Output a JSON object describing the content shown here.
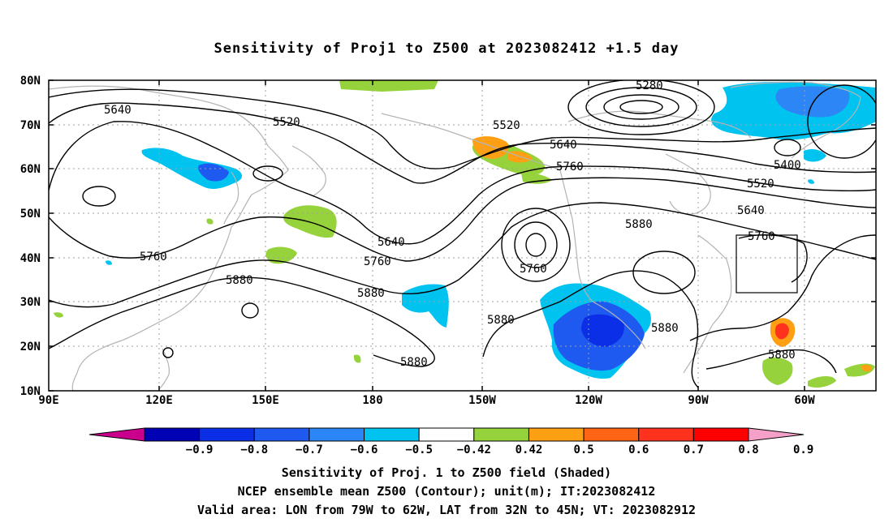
{
  "title": "Sensitivity of Proj1 to Z500 at 2023082412 +1.5 day",
  "lat_labels": [
    "80N",
    "70N",
    "60N",
    "50N",
    "40N",
    "30N",
    "20N",
    "10N"
  ],
  "lon_labels": [
    "90E",
    "120E",
    "150E",
    "180",
    "150W",
    "120W",
    "90W",
    "60W"
  ],
  "contour_labels": [
    "5640",
    "5520",
    "5520",
    "5640",
    "5760",
    "5280",
    "5400",
    "5520",
    "5640",
    "5760",
    "5760",
    "5880",
    "5760",
    "5640",
    "5760",
    "5880",
    "5880",
    "5880",
    "5880",
    "5880",
    "5880"
  ],
  "colorbar": {
    "labels": [
      "−0.9",
      "−0.8",
      "−0.7",
      "−0.6",
      "−0.5",
      "−0.42",
      "0.42",
      "0.5",
      "0.6",
      "0.7",
      "0.8",
      "0.9"
    ],
    "colors": [
      "#c8008c",
      "#0000b4",
      "#0a2fe6",
      "#1e5af0",
      "#2d86f5",
      "#00c3f0",
      "#ffffff",
      "#96d23c",
      "#ffa014",
      "#ff6414",
      "#ff321e",
      "#ff0000",
      "#f5a0c8"
    ]
  },
  "captions": [
    "Sensitivity of Proj. 1 to Z500 field (Shaded)",
    "NCEP ensemble mean Z500 (Contour); unit(m); IT:2023082412",
    "Valid area: LON from 79W to 62W, LAT from 32N to 45N; VT: 2023082912"
  ]
}
